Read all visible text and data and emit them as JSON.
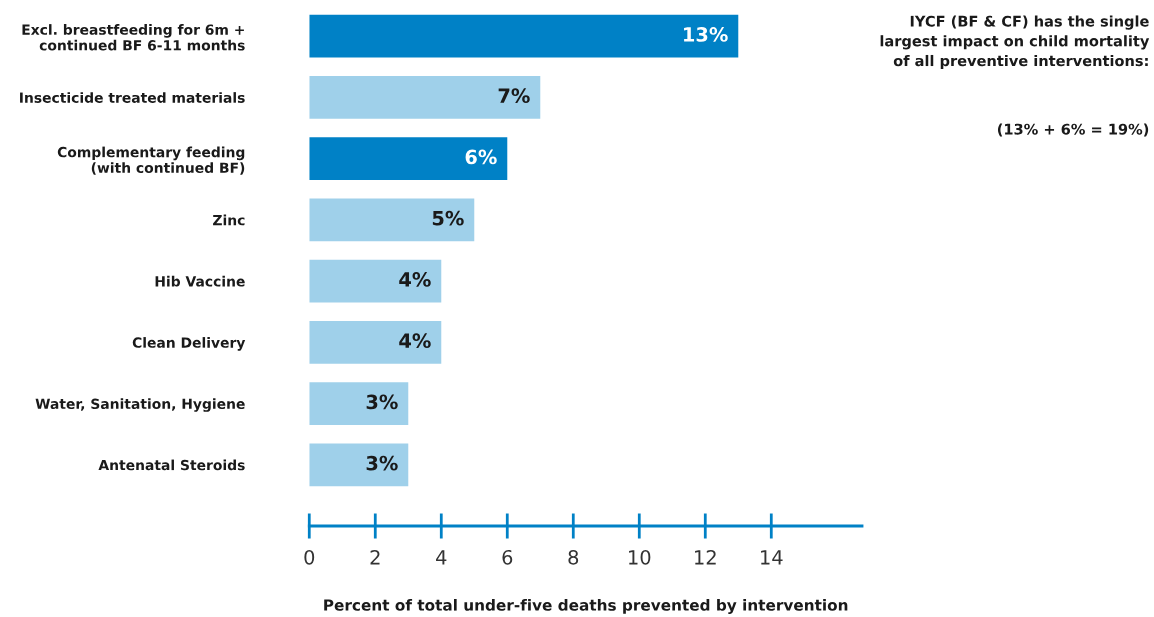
{
  "chart_data": {
    "type": "bar",
    "orientation": "horizontal",
    "categories": [
      "Excl. breastfeeding for 6m +\ncontinued BF 6-11 months",
      "Insecticide treated materials",
      "Complementary feeding\n(with continued BF)",
      "Zinc",
      "Hib Vaccine",
      "Clean Delivery",
      "Water, Sanitation, Hygiene",
      "Antenatal Steroids"
    ],
    "values": [
      13,
      7,
      6,
      5,
      4,
      4,
      3,
      3
    ],
    "value_labels": [
      "13%",
      "7%",
      "6%",
      "5%",
      "4%",
      "4%",
      "3%",
      "3%"
    ],
    "colors": [
      "#0081c6",
      "#9fd0ea",
      "#0081c6",
      "#9fd0ea",
      "#9fd0ea",
      "#9fd0ea",
      "#9fd0ea",
      "#9fd0ea"
    ],
    "xlim": [
      0,
      16.75
    ],
    "xticks": [
      0,
      2,
      4,
      6,
      8,
      10,
      12,
      14
    ],
    "xlabel": "Percent of total under-five deaths prevented by intervention",
    "annotations": [
      "IYCF (BF & CF) has the single\nlargest impact on child mortality\nof all preventive interventions:",
      "(13% + 6% = 19%)"
    ],
    "grid": false
  }
}
